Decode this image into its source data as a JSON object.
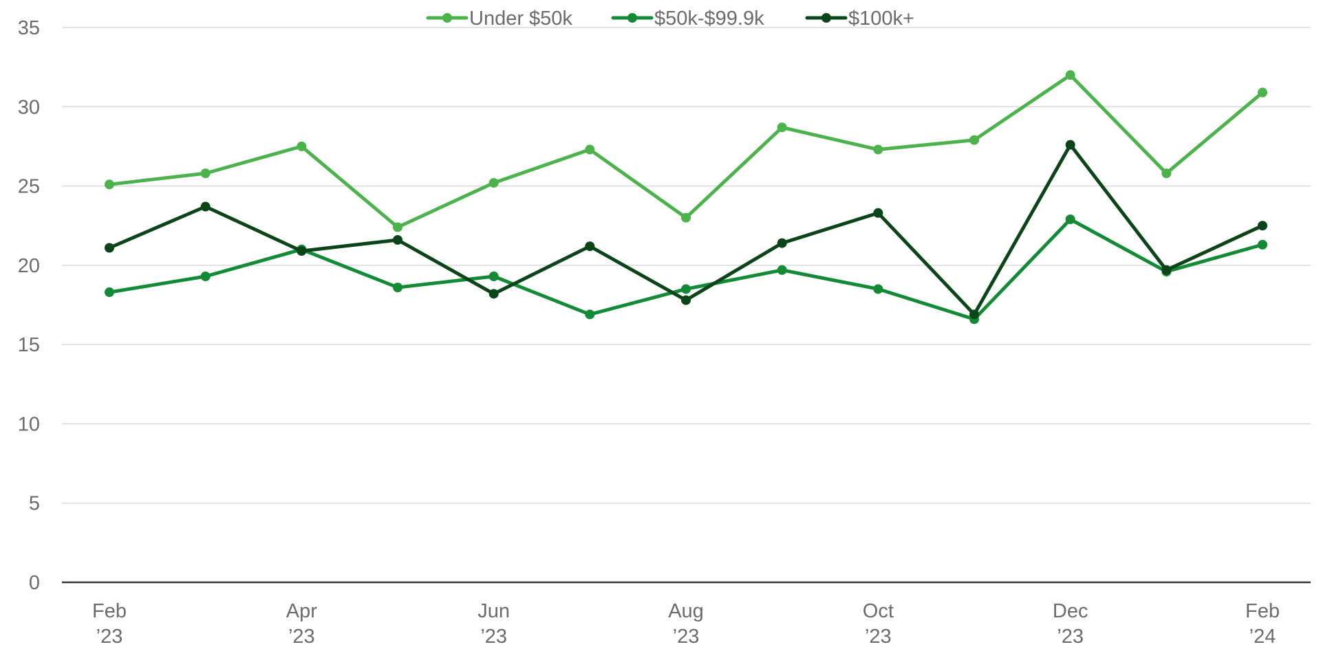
{
  "chart_data": {
    "type": "line",
    "title": "",
    "xlabel": "",
    "ylabel": "",
    "x": [
      "2023-02",
      "2023-03",
      "2023-04",
      "2023-05",
      "2023-06",
      "2023-07",
      "2023-08",
      "2023-09",
      "2023-10",
      "2023-11",
      "2023-12",
      "2024-01",
      "2024-02"
    ],
    "x_tick_labels": [
      {
        "x": "2023-02",
        "month": "Feb",
        "year": "’23"
      },
      {
        "x": "2023-04",
        "month": "Apr",
        "year": "’23"
      },
      {
        "x": "2023-06",
        "month": "Jun",
        "year": "’23"
      },
      {
        "x": "2023-08",
        "month": "Aug",
        "year": "’23"
      },
      {
        "x": "2023-10",
        "month": "Oct",
        "year": "’23"
      },
      {
        "x": "2023-12",
        "month": "Dec",
        "year": "’23"
      },
      {
        "x": "2024-02",
        "month": "Feb",
        "year": "’24"
      }
    ],
    "ylim": [
      0,
      35
    ],
    "y_ticks": [
      0,
      5,
      10,
      15,
      20,
      25,
      30,
      35
    ],
    "grid": true,
    "legend_position": "top-center",
    "series": [
      {
        "name": "Under $50k",
        "color": "#4cb34c",
        "values": [
          25.1,
          25.8,
          27.5,
          22.4,
          25.2,
          27.3,
          23.0,
          28.7,
          27.3,
          27.9,
          32.0,
          25.8,
          30.9
        ]
      },
      {
        "name": "$50k-$99.9k",
        "color": "#138a36",
        "values": [
          18.3,
          19.3,
          21.0,
          18.6,
          19.3,
          16.9,
          18.5,
          19.7,
          18.5,
          16.6,
          22.9,
          19.6,
          21.3
        ]
      },
      {
        "name": "$100k+",
        "color": "#0b4418",
        "values": [
          21.1,
          23.7,
          20.9,
          21.6,
          18.2,
          21.2,
          17.8,
          21.4,
          23.3,
          16.9,
          27.6,
          19.7,
          22.5
        ]
      }
    ]
  }
}
